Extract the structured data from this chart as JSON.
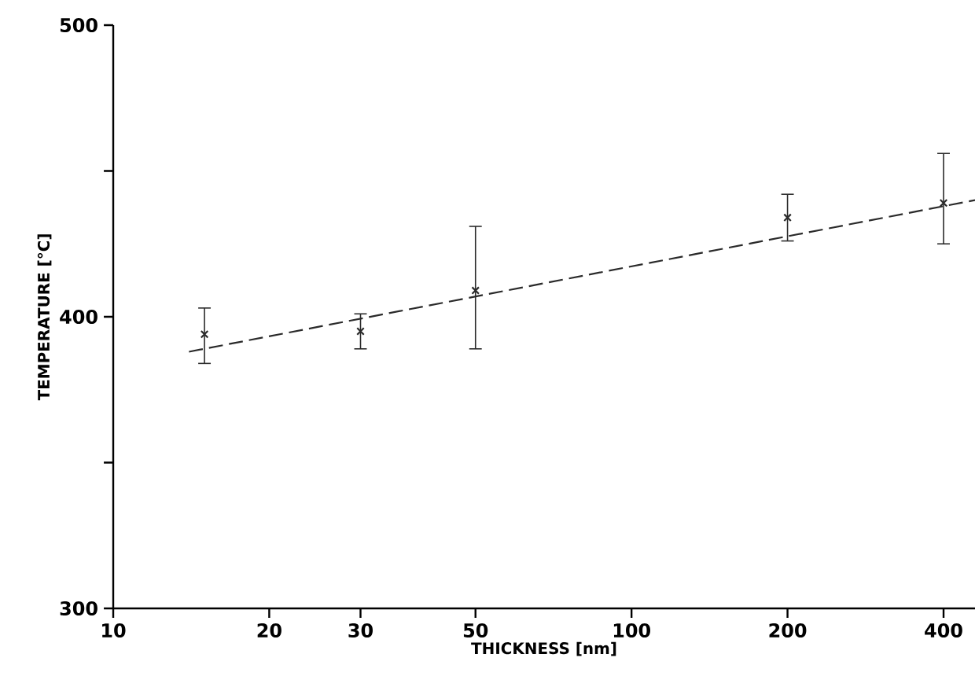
{
  "chart_data": {
    "type": "scatter",
    "xlabel": "THICKNESS  [nm]",
    "ylabel": "TEMPERATURE [°C]",
    "log": "x",
    "xlim": [
      10,
      460
    ],
    "ylim": [
      300,
      500
    ],
    "xticks": [
      10,
      20,
      30,
      50,
      100,
      200,
      400
    ],
    "yticks": [
      300,
      {
        "value": 350,
        "label": null
      },
      400,
      {
        "value": 450,
        "label": null
      },
      500
    ],
    "series": [
      {
        "color": "#2a2a2a",
        "marker": "cross",
        "x": [
          15,
          30,
          50,
          200,
          400
        ],
        "values": [
          394,
          395,
          409,
          434,
          439
        ],
        "errors": [
          [
            384,
            403
          ],
          [
            389,
            401
          ],
          [
            389,
            431
          ],
          [
            426,
            442
          ],
          [
            425,
            456
          ]
        ]
      },
      {
        "type": "line",
        "color": "#2a2a2a",
        "marker": "none",
        "line_style": "dashed",
        "x": [
          14,
          460
        ],
        "values": [
          388,
          440
        ]
      }
    ]
  }
}
